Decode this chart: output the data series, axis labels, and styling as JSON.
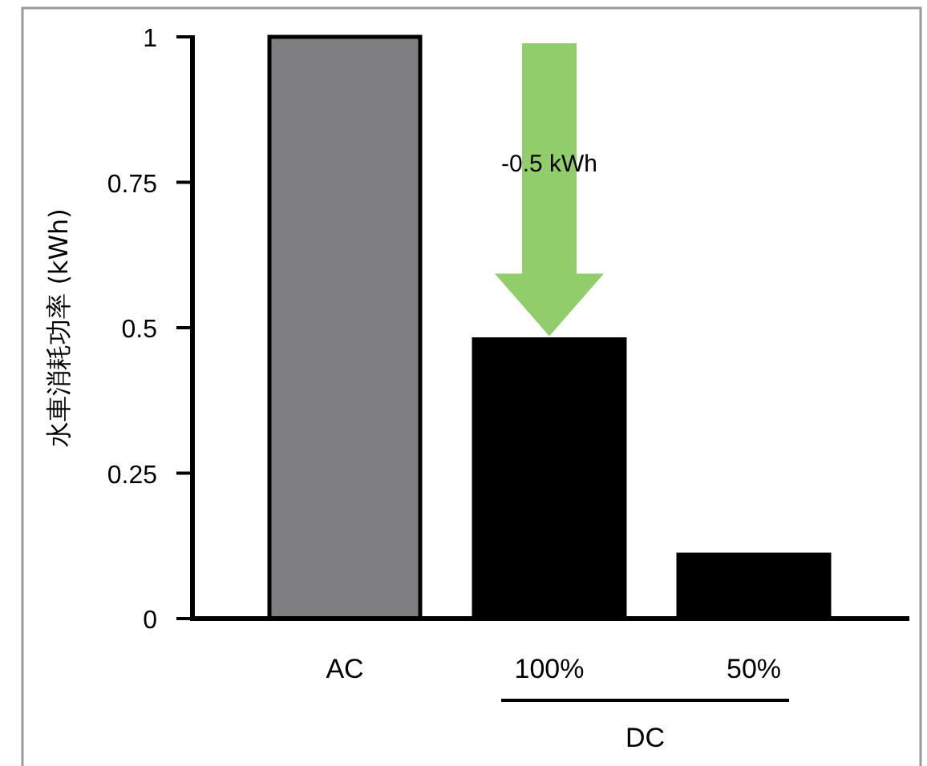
{
  "chart_data": {
    "type": "bar",
    "ylabel": "水車消耗功率 (kWh)",
    "categories": [
      "AC",
      "100%",
      "50%"
    ],
    "values": [
      1,
      0.48,
      0.11
    ],
    "colors": [
      "#7f7f82",
      "#000000",
      "#000000"
    ],
    "ylim": [
      0,
      1
    ],
    "yticks": [
      0,
      0.25,
      0.5,
      0.75,
      1
    ],
    "annotations": [
      "-0.5 kWh",
      "DC"
    ]
  }
}
